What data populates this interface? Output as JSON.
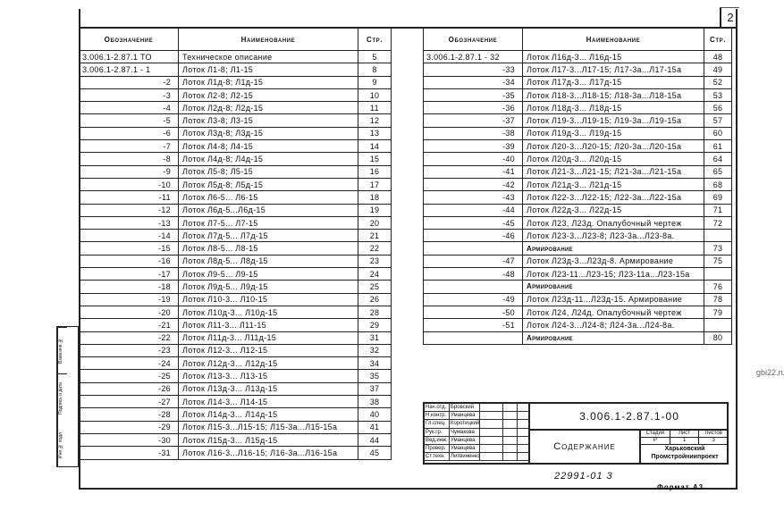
{
  "sheet_number": "2",
  "headers": {
    "designation": "Обозначение",
    "name": "Наименование",
    "page": "Стр."
  },
  "left_rows": [
    {
      "d": "3.006.1-2.87.1 ТО",
      "n": "Техническое описание",
      "p": "5",
      "first": true
    },
    {
      "d": "3.006.1-2.87.1 - 1",
      "n": "Лоток Л1-8; Л1-15",
      "p": "8",
      "first": true
    },
    {
      "d": "-2",
      "n": "Лоток Л1д-8; Л1д-15",
      "p": "9"
    },
    {
      "d": "-3",
      "n": "Лоток Л2-8; Л2-15",
      "p": "10"
    },
    {
      "d": "-4",
      "n": "Лоток Л2д-8; Л2д-15",
      "p": "11"
    },
    {
      "d": "-5",
      "n": "Лоток Л3-8; Л3-15",
      "p": "12"
    },
    {
      "d": "-6",
      "n": "Лоток Л3д-8; Л3д-15",
      "p": "13"
    },
    {
      "d": "-7",
      "n": "Лоток Л4-8; Л4-15",
      "p": "14"
    },
    {
      "d": "-8",
      "n": "Лоток Л4д-8; Л4д-15",
      "p": "15"
    },
    {
      "d": "-9",
      "n": "Лоток Л5-8; Л5-15",
      "p": "16"
    },
    {
      "d": "-10",
      "n": "Лоток Л5д-8; Л5д-15",
      "p": "17"
    },
    {
      "d": "-11",
      "n": "Лоток Л6-5... Л6-15",
      "p": "18"
    },
    {
      "d": "-12",
      "n": "Лоток Л6д-5...Л6д-15",
      "p": "19"
    },
    {
      "d": "-13",
      "n": "Лоток Л7-5... Л7-15",
      "p": "20"
    },
    {
      "d": "-14",
      "n": "Лоток Л7д-5... Л7д-15",
      "p": "21"
    },
    {
      "d": "-15",
      "n": "Лоток Л8-5... Л8-15",
      "p": "22"
    },
    {
      "d": "-16",
      "n": "Лоток Л8д-5... Л8д-15",
      "p": "23"
    },
    {
      "d": "-17",
      "n": "Лоток Л9-5... Л9-15",
      "p": "24"
    },
    {
      "d": "-18",
      "n": "Лоток Л9д-5... Л9д-15",
      "p": "25"
    },
    {
      "d": "-19",
      "n": "Лоток Л10-3... Л10-15",
      "p": "26"
    },
    {
      "d": "-20",
      "n": "Лоток Л10д-3... Л10д-15",
      "p": "28"
    },
    {
      "d": "-21",
      "n": "Лоток Л11-3... Л11-15",
      "p": "29"
    },
    {
      "d": "-22",
      "n": "Лоток Л11д-3... Л11д-15",
      "p": "31"
    },
    {
      "d": "-23",
      "n": "Лоток Л12-3... Л12-15",
      "p": "32"
    },
    {
      "d": "-24",
      "n": "Лоток Л12д-3... Л12д-15",
      "p": "34"
    },
    {
      "d": "-25",
      "n": "Лоток Л13-3... Л13-15",
      "p": "35"
    },
    {
      "d": "-26",
      "n": "Лоток Л13д-3... Л13д-15",
      "p": "37"
    },
    {
      "d": "-27",
      "n": "Лоток Л14-3... Л14-15",
      "p": "38"
    },
    {
      "d": "-28",
      "n": "Лоток Л14д-3... Л14д-15",
      "p": "40"
    },
    {
      "d": "-29",
      "n": "Лоток Л15-3...Л15-15; Л15-3а...Л15-15а",
      "p": "41"
    },
    {
      "d": "-30",
      "n": "Лоток Л15д-3... Л15д-15",
      "p": "44"
    },
    {
      "d": "-31",
      "n": "Лоток Л16-3...Л16-15; Л16-3а...Л16-15а",
      "p": "45"
    }
  ],
  "right_rows": [
    {
      "d": "3.006.1-2.87.1 - 32",
      "n": "Лоток Л16д-3... Л16д-15",
      "p": "48",
      "first": true
    },
    {
      "d": "-33",
      "n": "Лоток Л17-3...Л17-15; Л17-3а...Л17-15а",
      "p": "49"
    },
    {
      "d": "-34",
      "n": "Лоток Л17д-3... Л17д-15",
      "p": "52"
    },
    {
      "d": "-35",
      "n": "Лоток Л18-3...Л18-15; Л18-3а...Л18-15а",
      "p": "53"
    },
    {
      "d": "-36",
      "n": "Лоток Л18д-3... Л18д-15",
      "p": "56"
    },
    {
      "d": "-37",
      "n": "Лоток Л19-3...Л19-15; Л19-3а...Л19-15а",
      "p": "57"
    },
    {
      "d": "-38",
      "n": "Лоток Л19д-3... Л19д-15",
      "p": "60"
    },
    {
      "d": "-39",
      "n": "Лоток Л20-3...Л20-15; Л20-3а...Л20-15а",
      "p": "61"
    },
    {
      "d": "-40",
      "n": "Лоток Л20д-3... Л20д-15",
      "p": "64"
    },
    {
      "d": "-41",
      "n": "Лоток Л21-3...Л21-15; Л21-3а...Л21-15а",
      "p": "65"
    },
    {
      "d": "-42",
      "n": "Лоток Л21д-3... Л21д-15",
      "p": "68"
    },
    {
      "d": "-43",
      "n": "Лоток Л22-3...Л22-15; Л22-3а...Л22-15а",
      "p": "69"
    },
    {
      "d": "-44",
      "n": "Лоток Л22д-3... Л22д-15",
      "p": "71"
    },
    {
      "d": "-45",
      "n": "Лоток Л23, Л23д. Опалубочный чертеж",
      "p": "72"
    },
    {
      "d": "-46",
      "n": "Лоток Л23-3...Л23-8; Л23-3а...Л23-8а.",
      "p": ""
    },
    {
      "d": "",
      "n": "Армирование",
      "p": "73",
      "sec": true
    },
    {
      "d": "-47",
      "n": "Лоток Л23д-3...Л23д-8. Армирование",
      "p": "75"
    },
    {
      "d": "-48",
      "n": "Лоток Л23-11...Л23-15; Л23-11а...Л23-15а",
      "p": ""
    },
    {
      "d": "",
      "n": "Армирование",
      "p": "76",
      "sec": true
    },
    {
      "d": "-49",
      "n": "Лоток Л23д-11...Л23д-15. Армирование",
      "p": "78"
    },
    {
      "d": "-50",
      "n": "Лоток Л24, Л24д. Опалубочный чертеж",
      "p": "79"
    },
    {
      "d": "-51",
      "n": "Лоток Л24-3...Л24-8; Л24-3а...Л24-8а.",
      "p": ""
    },
    {
      "d": "",
      "n": "Армирование",
      "p": "80",
      "sec": true
    }
  ],
  "title_block": {
    "signatures": [
      {
        "role": "Нач.отд.",
        "name": "Бровский"
      },
      {
        "role": "Н.контр.",
        "name": "Уманцева"
      },
      {
        "role": "Гл.спец.",
        "name": "Коротицкий"
      },
      {
        "role": "Рук.гр.",
        "name": "Чумакова"
      },
      {
        "role": "Вед.инж.",
        "name": "Уманцева"
      },
      {
        "role": "Провер.",
        "name": "Уманцева"
      },
      {
        "role": "Ст.техн.",
        "name": "Литвиненко"
      }
    ],
    "code": "3.006.1-2.87.1-00",
    "title": "Содержание",
    "stage_label": "Стадия",
    "sheet_label": "Лист",
    "sheets_label": "Листов",
    "stage": "Р",
    "sheet": "1",
    "sheets": "3",
    "org_line1": "Харьковский",
    "org_line2": "Промстройниипроект"
  },
  "inventory": "22991-01   3",
  "format": "Формат А3",
  "stamp_strip": [
    "Инв.№ подл.",
    "Подпись и дата",
    "Взам.инв.№"
  ],
  "watermark": "gbi22.ru"
}
